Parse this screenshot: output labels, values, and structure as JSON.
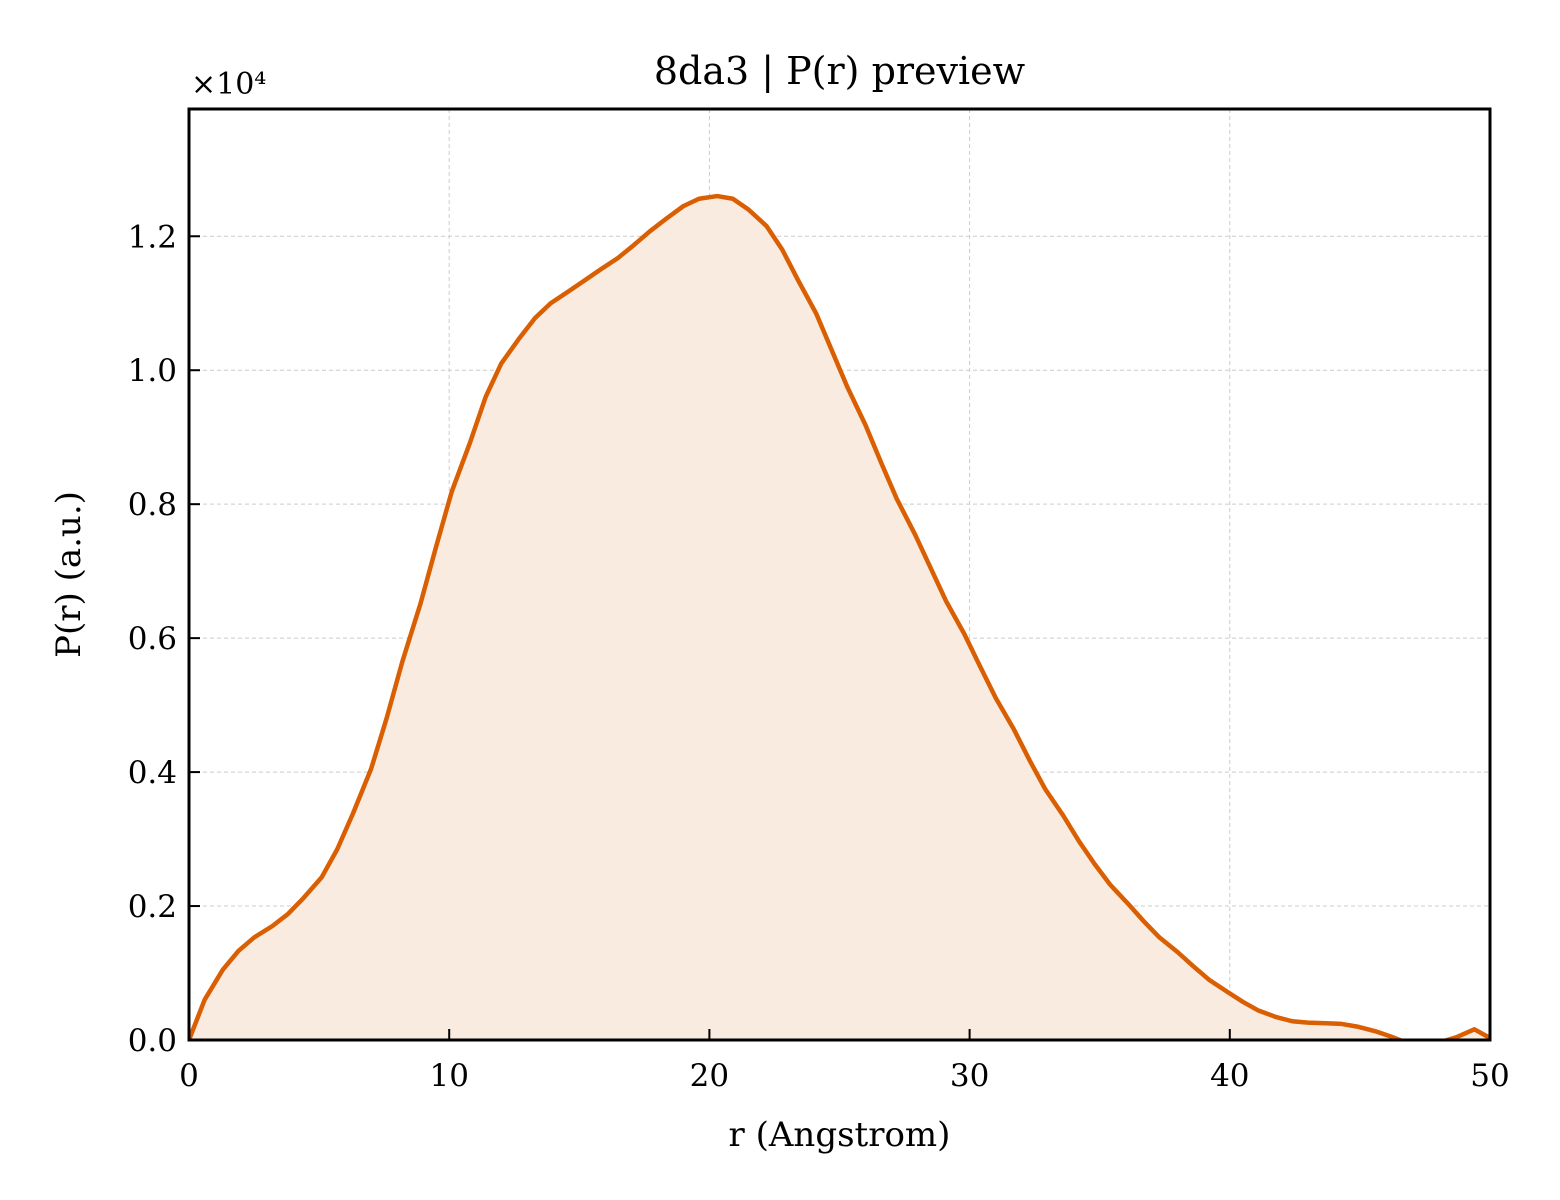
{
  "chart_data": {
    "type": "area",
    "title": "8da3 | P(r) preview",
    "xlabel": "r (Angstrom)",
    "ylabel": "P(r) (a.u.)",
    "y_multiplier_label": "×10⁴",
    "xlim": [
      0,
      50
    ],
    "ylim": [
      0,
      1.39
    ],
    "y_scale_factor": 10000,
    "xticks": [
      0,
      10,
      20,
      30,
      40,
      50
    ],
    "yticks": [
      0.0,
      0.2,
      0.4,
      0.6,
      0.8,
      1.0,
      1.2
    ],
    "xtick_labels": [
      "0",
      "10",
      "20",
      "30",
      "40",
      "50"
    ],
    "ytick_labels": [
      "0.0",
      "0.2",
      "0.4",
      "0.6",
      "0.8",
      "1.0",
      "1.2"
    ],
    "grid": true,
    "colors": {
      "line": "#d95f02",
      "fill": "#f9ebe0",
      "grid": "#cccccc"
    },
    "series": [
      {
        "x": [
          0,
          0.6,
          1.3,
          1.9,
          2.5,
          3.2,
          3.8,
          4.4,
          5.1,
          5.7,
          6.3,
          7.0,
          7.6,
          8.2,
          8.9,
          9.5,
          10.1,
          10.8,
          11.4,
          12.0,
          12.7,
          13.3,
          13.9,
          14.6,
          15.2,
          15.8,
          16.5,
          17.1,
          17.7,
          18.4,
          19.0,
          19.6,
          20.3,
          20.9,
          21.5,
          22.2,
          22.8,
          23.4,
          24.1,
          24.7,
          25.3,
          26.0,
          26.6,
          27.2,
          27.9,
          28.5,
          29.1,
          29.8,
          30.4,
          31.0,
          31.7,
          32.3,
          32.9,
          33.6,
          34.2,
          34.8,
          35.4,
          36.1,
          36.7,
          37.3,
          38.0,
          38.6,
          39.2,
          39.9,
          40.5,
          41.1,
          41.8,
          42.4,
          43.0,
          43.7,
          44.3,
          44.9,
          45.6,
          46.2,
          46.8,
          47.5,
          48.1,
          48.7,
          49.4,
          50.0
        ],
        "y": [
          0.0,
          0.06,
          0.105,
          0.133,
          0.153,
          0.17,
          0.188,
          0.212,
          0.243,
          0.285,
          0.338,
          0.405,
          0.481,
          0.565,
          0.652,
          0.737,
          0.819,
          0.892,
          0.96,
          1.01,
          1.048,
          1.078,
          1.1,
          1.118,
          1.134,
          1.15,
          1.168,
          1.187,
          1.207,
          1.228,
          1.245,
          1.256,
          1.26,
          1.256,
          1.24,
          1.215,
          1.18,
          1.135,
          1.085,
          1.03,
          0.975,
          0.918,
          0.862,
          0.808,
          0.755,
          0.705,
          0.655,
          0.606,
          0.558,
          0.511,
          0.464,
          0.418,
          0.375,
          0.335,
          0.297,
          0.263,
          0.232,
          0.203,
          0.177,
          0.153,
          0.131,
          0.11,
          0.09,
          0.072,
          0.057,
          0.044,
          0.034,
          0.028,
          0.026,
          0.025,
          0.024,
          0.02,
          0.013,
          0.005,
          -0.004,
          -0.008,
          -0.003,
          0.004,
          0.016,
          0.003
        ]
      }
    ]
  }
}
